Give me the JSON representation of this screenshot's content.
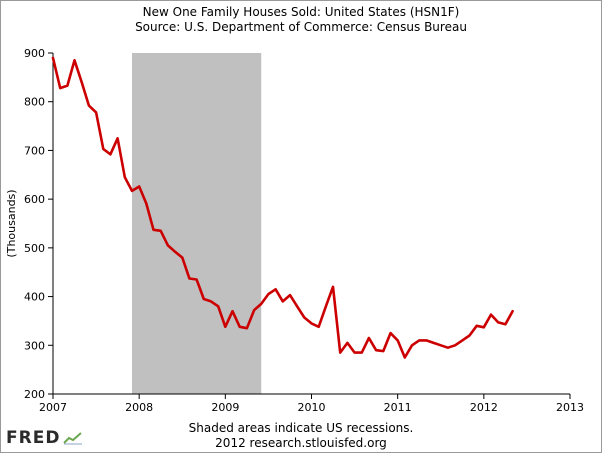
{
  "header": {
    "title": "New One Family Houses Sold: United States (HSN1F)",
    "source": "Source: U.S. Department of Commerce: Census Bureau"
  },
  "footer": {
    "note": "Shaded areas indicate US recessions.",
    "credit": "2012 research.stlouisfed.org"
  },
  "logo": {
    "text": "FRED",
    "icon": "chart-line-icon"
  },
  "chart_data": {
    "type": "line",
    "title": "New One Family Houses Sold: United States (HSN1F)",
    "subtitle": "Source: U.S. Department of Commerce: Census Bureau",
    "xlabel": "",
    "ylabel": "(Thousands)",
    "xlim": [
      2007,
      2013
    ],
    "ylim": [
      200,
      900
    ],
    "x_ticks": [
      "2007",
      "2008",
      "2009",
      "2010",
      "2011",
      "2012",
      "2013"
    ],
    "y_ticks": [
      "200",
      "300",
      "400",
      "500",
      "600",
      "700",
      "800",
      "900"
    ],
    "grid": false,
    "series_color": "#cc0000",
    "recession_color": "#c0c0c0",
    "recessions": [
      {
        "start": "2007-12",
        "end": "2009-06"
      }
    ],
    "series": [
      {
        "x": [
          "2007-01",
          "2007-02",
          "2007-03",
          "2007-04",
          "2007-05",
          "2007-06",
          "2007-07",
          "2007-08",
          "2007-09",
          "2007-10",
          "2007-11",
          "2007-12",
          "2008-01",
          "2008-02",
          "2008-03",
          "2008-04",
          "2008-05",
          "2008-06",
          "2008-07",
          "2008-08",
          "2008-09",
          "2008-10",
          "2008-11",
          "2008-12",
          "2009-01",
          "2009-02",
          "2009-03",
          "2009-04",
          "2009-05",
          "2009-06",
          "2009-07",
          "2009-08",
          "2009-09",
          "2009-10",
          "2009-11",
          "2009-12",
          "2010-01",
          "2010-02",
          "2010-03",
          "2010-04",
          "2010-05",
          "2010-06",
          "2010-07",
          "2010-08",
          "2010-09",
          "2010-10",
          "2010-11",
          "2010-12",
          "2011-01",
          "2011-02",
          "2011-03",
          "2011-04",
          "2011-05",
          "2011-06",
          "2011-07",
          "2011-08",
          "2011-09",
          "2011-10",
          "2011-11",
          "2011-12",
          "2012-01",
          "2012-02",
          "2012-03",
          "2012-04",
          "2012-05"
        ],
        "values": [
          890,
          828,
          833,
          885,
          840,
          792,
          778,
          703,
          692,
          725,
          645,
          617,
          626,
          591,
          537,
          535,
          505,
          492,
          480,
          437,
          435,
          395,
          390,
          380,
          338,
          370,
          338,
          335,
          372,
          385,
          405,
          415,
          390,
          403,
          380,
          357,
          345,
          338,
          380,
          420,
          285,
          305,
          285,
          285,
          315,
          290,
          288,
          325,
          310,
          275,
          300,
          310,
          310,
          305,
          300,
          295,
          300,
          310,
          320,
          340,
          337,
          363,
          347,
          343,
          370
        ]
      }
    ]
  }
}
